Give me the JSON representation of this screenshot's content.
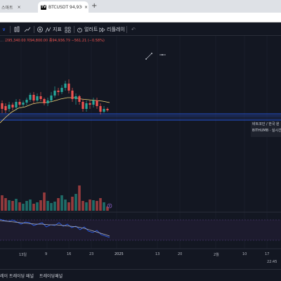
{
  "browser": {
    "prev_tab_title": "스마트",
    "prev_tab_close": "×",
    "active_tab_logo": "TV",
    "active_tab_title": "BTCUSDT 94,936.80 ▼ −0.58%",
    "active_tab_close": "×",
    "new_tab": "+"
  },
  "toolbar": {
    "chevron": "∨",
    "indicators": "지표",
    "alert": "얼러트",
    "replay": "리플레이",
    "undo": "↶"
  },
  "legend": {
    "high": "고95,340.00",
    "low": "저94,800.00",
    "close": "종94,936.79",
    "change": "−561.21 (−0.58%)"
  },
  "time_axis": {
    "labels": [
      "13일",
      "9",
      "16",
      "23",
      "2025",
      "13",
      "20",
      "2월",
      "10",
      "17"
    ],
    "clock": "22:45"
  },
  "tooltip": {
    "line1": "비트코인 / 한국 원",
    "line2": "BITHUMB · 실시간"
  },
  "bottom_bar": {
    "item1": "레이 트레이딩 패널",
    "item2": "트레이딩패널"
  },
  "colors": {
    "up": "#26a69a",
    "down": "#ef5350",
    "ma": "#f5d77b",
    "background": "#131722"
  }
}
